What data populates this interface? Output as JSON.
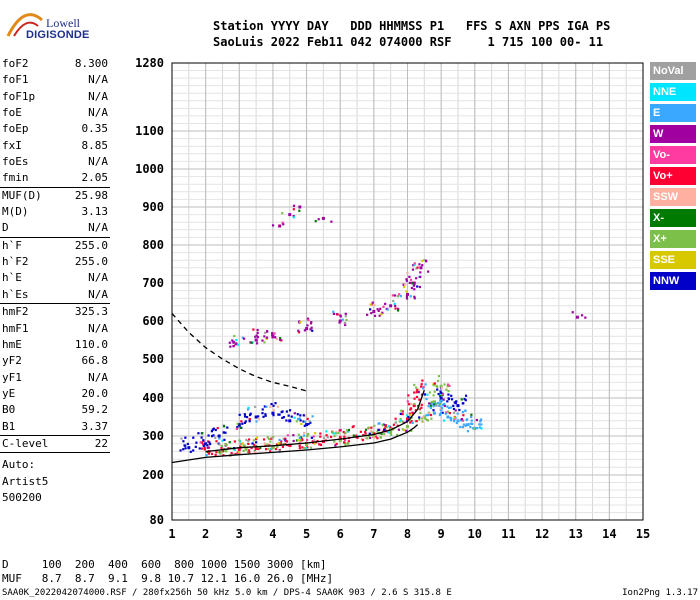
{
  "logo": {
    "line1": "Lowell",
    "line2": "DIGISONDE"
  },
  "header": {
    "line1": "Station YYYY DAY   DDD HHMMSS P1   FFS S AXN PPS IGA PS",
    "line2": "SaoLuis 2022 Feb11 042 074000 RSF     1 715 100 00- 11"
  },
  "params": {
    "group1": [
      {
        "name": "foF2",
        "value": "8.300"
      },
      {
        "name": "foF1",
        "value": "N/A"
      },
      {
        "name": "foF1p",
        "value": "N/A"
      },
      {
        "name": "foE",
        "value": "N/A"
      },
      {
        "name": "foEp",
        "value": "0.35"
      },
      {
        "name": "fxI",
        "value": "8.85"
      },
      {
        "name": "foEs",
        "value": "N/A"
      },
      {
        "name": "fmin",
        "value": "2.05"
      }
    ],
    "group2": [
      {
        "name": "MUF(D)",
        "value": "25.98"
      },
      {
        "name": "M(D)",
        "value": "3.13"
      },
      {
        "name": "D",
        "value": "N/A"
      }
    ],
    "group3": [
      {
        "name": "h`F",
        "value": "255.0"
      },
      {
        "name": "h`F2",
        "value": "255.0"
      },
      {
        "name": "h`E",
        "value": "N/A"
      },
      {
        "name": "h`Es",
        "value": "N/A"
      }
    ],
    "group4": [
      {
        "name": "hmF2",
        "value": "325.3"
      },
      {
        "name": "hmF1",
        "value": "N/A"
      },
      {
        "name": "hmE",
        "value": "110.0"
      },
      {
        "name": "yF2",
        "value": "66.8"
      },
      {
        "name": "yF1",
        "value": "N/A"
      },
      {
        "name": "yE",
        "value": "20.0"
      },
      {
        "name": "B0",
        "value": "59.2"
      },
      {
        "name": "B1",
        "value": "3.37"
      }
    ],
    "clevel": {
      "name": "C-level",
      "value": "22"
    },
    "auto": [
      "Auto:",
      "Artist5",
      "500200"
    ]
  },
  "legend": [
    {
      "label": "NoVal",
      "color": "#a0a0a0"
    },
    {
      "label": "NNE",
      "color": "#00e5ff"
    },
    {
      "label": "E",
      "color": "#3aa8ff"
    },
    {
      "label": "W",
      "color": "#a000a0"
    },
    {
      "label": "Vo-",
      "color": "#ff3aa0"
    },
    {
      "label": "Vo+",
      "color": "#ff0033"
    },
    {
      "label": "SSW",
      "color": "#ffb0a0"
    },
    {
      "label": "X-",
      "color": "#007a00"
    },
    {
      "label": "X+",
      "color": "#7cc04a"
    },
    {
      "label": "SSE",
      "color": "#d8c800"
    },
    {
      "label": "NNW",
      "color": "#0000c8"
    }
  ],
  "footer": {
    "line1": "D     100  200  400  600  800 1000 1500 3000 [km]",
    "line2": "MUF   8.7  8.7  9.1  9.8 10.7 12.1 16.0 26.0 [MHz]",
    "file_info": "SAA0K_2022042074000.RSF / 280fx256h 50 kHz 5.0 km / DPS-4 SAA0K 903 / 2.6 S 315.8 E",
    "version": "Ion2Png 1.3.17"
  },
  "chart_data": {
    "type": "scatter",
    "title": "",
    "xlabel": "",
    "ylabel": "",
    "x_ticks": [
      1,
      2,
      3,
      4,
      5,
      6,
      7,
      8,
      9,
      10,
      11,
      12,
      13,
      14,
      15
    ],
    "y_ticks": [
      80,
      200,
      300,
      400,
      500,
      600,
      700,
      800,
      900,
      1000,
      1100,
      1280
    ],
    "xlim": [
      1,
      15
    ],
    "ylim": [
      80,
      1280
    ],
    "y_scale": "nonlinear (compressed at high range)",
    "grid": true,
    "legend_position": "right",
    "series": [
      {
        "name": "F-layer O-trace (Vo+)",
        "color_key": "Vo+",
        "points": [
          [
            2.1,
            260
          ],
          [
            2.5,
            262
          ],
          [
            3.0,
            265
          ],
          [
            3.5,
            268
          ],
          [
            4.0,
            272
          ],
          [
            4.5,
            276
          ],
          [
            5.0,
            281
          ],
          [
            5.5,
            286
          ],
          [
            6.0,
            292
          ],
          [
            6.5,
            298
          ],
          [
            7.0,
            306
          ],
          [
            7.5,
            318
          ],
          [
            8.0,
            345
          ],
          [
            8.2,
            380
          ],
          [
            8.3,
            420
          ]
        ]
      },
      {
        "name": "F-layer X-trace (X+)",
        "color_key": "X+",
        "points": [
          [
            2.6,
            262
          ],
          [
            3.2,
            266
          ],
          [
            4.0,
            270
          ],
          [
            5.0,
            278
          ],
          [
            6.0,
            288
          ],
          [
            7.0,
            300
          ],
          [
            7.5,
            310
          ],
          [
            8.0,
            325
          ],
          [
            8.5,
            350
          ],
          [
            8.8,
            390
          ],
          [
            9.0,
            430
          ]
        ]
      },
      {
        "name": "Second-hop trace (W)",
        "color_key": "W",
        "points": [
          [
            2.9,
            540
          ],
          [
            3.5,
            550
          ],
          [
            4.0,
            560
          ],
          [
            5.0,
            580
          ],
          [
            6.0,
            600
          ],
          [
            7.0,
            625
          ],
          [
            7.5,
            640
          ],
          [
            8.0,
            670
          ],
          [
            8.2,
            700
          ],
          [
            8.4,
            740
          ]
        ]
      },
      {
        "name": "Scattered echoes (NNW)",
        "color_key": "NNW",
        "points": [
          [
            1.5,
            270
          ],
          [
            2.0,
            280
          ],
          [
            2.4,
            300
          ],
          [
            3.0,
            330
          ],
          [
            3.5,
            350
          ],
          [
            4.0,
            360
          ],
          [
            4.5,
            340
          ],
          [
            5.0,
            330
          ],
          [
            9.0,
            400
          ],
          [
            9.5,
            380
          ]
        ]
      },
      {
        "name": "Scattered echoes (E)",
        "color_key": "E",
        "points": [
          [
            8.8,
            360
          ],
          [
            9.0,
            370
          ],
          [
            9.2,
            350
          ],
          [
            9.5,
            340
          ],
          [
            9.8,
            330
          ],
          [
            10.0,
            320
          ]
        ]
      },
      {
        "name": "Isolated echoes",
        "color_key": "W",
        "points": [
          [
            4.2,
            850
          ],
          [
            4.5,
            880
          ],
          [
            4.8,
            900
          ],
          [
            5.5,
            870
          ],
          [
            13.05,
            610
          ]
        ]
      }
    ],
    "curves": [
      {
        "name": "profile",
        "style": "solid",
        "points": [
          [
            1.0,
            232
          ],
          [
            2.0,
            245
          ],
          [
            3.0,
            252
          ],
          [
            4.0,
            258
          ],
          [
            5.0,
            264
          ],
          [
            6.0,
            272
          ],
          [
            7.0,
            282
          ],
          [
            7.5,
            292
          ],
          [
            8.0,
            310
          ],
          [
            8.2,
            322
          ],
          [
            8.3,
            330
          ]
        ]
      },
      {
        "name": "profile-x",
        "style": "solid",
        "points": [
          [
            2.0,
            260
          ],
          [
            3.0,
            270
          ],
          [
            4.0,
            275
          ],
          [
            5.0,
            282
          ],
          [
            6.0,
            292
          ],
          [
            7.0,
            304
          ],
          [
            7.5,
            316
          ],
          [
            8.0,
            338
          ],
          [
            8.3,
            370
          ],
          [
            8.5,
            420
          ]
        ]
      },
      {
        "name": "model",
        "style": "dashed",
        "points": [
          [
            1.0,
            620
          ],
          [
            1.5,
            570
          ],
          [
            2.0,
            530
          ],
          [
            2.5,
            500
          ],
          [
            3.0,
            475
          ],
          [
            3.5,
            455
          ],
          [
            4.0,
            440
          ],
          [
            4.5,
            430
          ],
          [
            5.0,
            418
          ]
        ]
      }
    ]
  }
}
